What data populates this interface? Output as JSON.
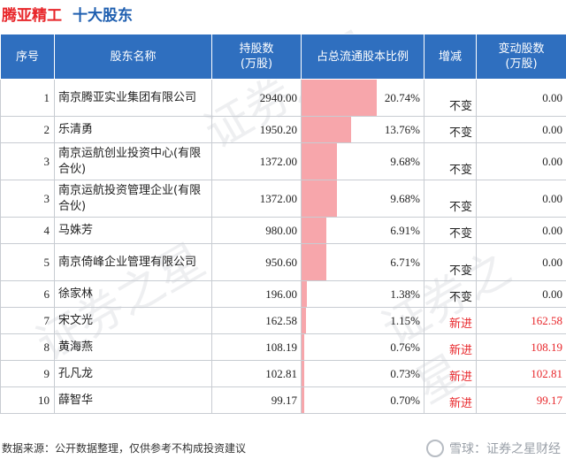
{
  "header": {
    "company": "腾亚精工",
    "subtitle": "十大股东"
  },
  "columns": {
    "rank": "序号",
    "name": "股东名称",
    "shares": "持股数\n(万股)",
    "ratio": "占总流通股本比例",
    "change": "增减",
    "delta": "变动股数\n(万股)"
  },
  "chart_data": {
    "type": "table",
    "max_ratio_percent": 20.74,
    "rows": [
      {
        "rank": "1",
        "name": "南京腾亚实业集团有限公司",
        "shares": "2940.00",
        "ratio_text": "20.74%",
        "ratio": 20.74,
        "change": "不变",
        "delta": "0.00",
        "is_new": false
      },
      {
        "rank": "2",
        "name": "乐清勇",
        "shares": "1950.20",
        "ratio_text": "13.76%",
        "ratio": 13.76,
        "change": "不变",
        "delta": "0.00",
        "is_new": false
      },
      {
        "rank": "3",
        "name": "南京运航创业投资中心(有限合伙)",
        "shares": "1372.00",
        "ratio_text": "9.68%",
        "ratio": 9.68,
        "change": "不变",
        "delta": "0.00",
        "is_new": false
      },
      {
        "rank": "3",
        "name": "南京运航投资管理企业(有限合伙)",
        "shares": "1372.00",
        "ratio_text": "9.68%",
        "ratio": 9.68,
        "change": "不变",
        "delta": "0.00",
        "is_new": false
      },
      {
        "rank": "4",
        "name": "马姝芳",
        "shares": "980.00",
        "ratio_text": "6.91%",
        "ratio": 6.91,
        "change": "不变",
        "delta": "0.00",
        "is_new": false
      },
      {
        "rank": "5",
        "name": "南京倚峰企业管理有限公司",
        "shares": "950.60",
        "ratio_text": "6.71%",
        "ratio": 6.71,
        "change": "不变",
        "delta": "0.00",
        "is_new": false
      },
      {
        "rank": "6",
        "name": "徐家林",
        "shares": "196.00",
        "ratio_text": "1.38%",
        "ratio": 1.38,
        "change": "不变",
        "delta": "0.00",
        "is_new": false
      },
      {
        "rank": "7",
        "name": "宋文光",
        "shares": "162.58",
        "ratio_text": "1.15%",
        "ratio": 1.15,
        "change": "新进",
        "delta": "162.58",
        "is_new": true
      },
      {
        "rank": "8",
        "name": "黄海燕",
        "shares": "108.19",
        "ratio_text": "0.76%",
        "ratio": 0.76,
        "change": "新进",
        "delta": "108.19",
        "is_new": true
      },
      {
        "rank": "9",
        "name": "孔凡龙",
        "shares": "102.81",
        "ratio_text": "0.73%",
        "ratio": 0.73,
        "change": "新进",
        "delta": "102.81",
        "is_new": true
      },
      {
        "rank": "10",
        "name": "薛智华",
        "shares": "99.17",
        "ratio_text": "0.70%",
        "ratio": 0.7,
        "change": "新进",
        "delta": "99.17",
        "is_new": true
      }
    ]
  },
  "colors": {
    "header_bg": "#2f6fbf",
    "bar": "#f7a6ab",
    "new": "#e8262a",
    "title_red": "#e8262a",
    "title_blue": "#1f5fb0"
  },
  "footer": {
    "source": "数据来源：公开数据整理，仅供参考不构成投资建议"
  },
  "brand": {
    "label": "雪球：证券之星财经"
  },
  "watermark": {
    "text": "证券之星"
  }
}
